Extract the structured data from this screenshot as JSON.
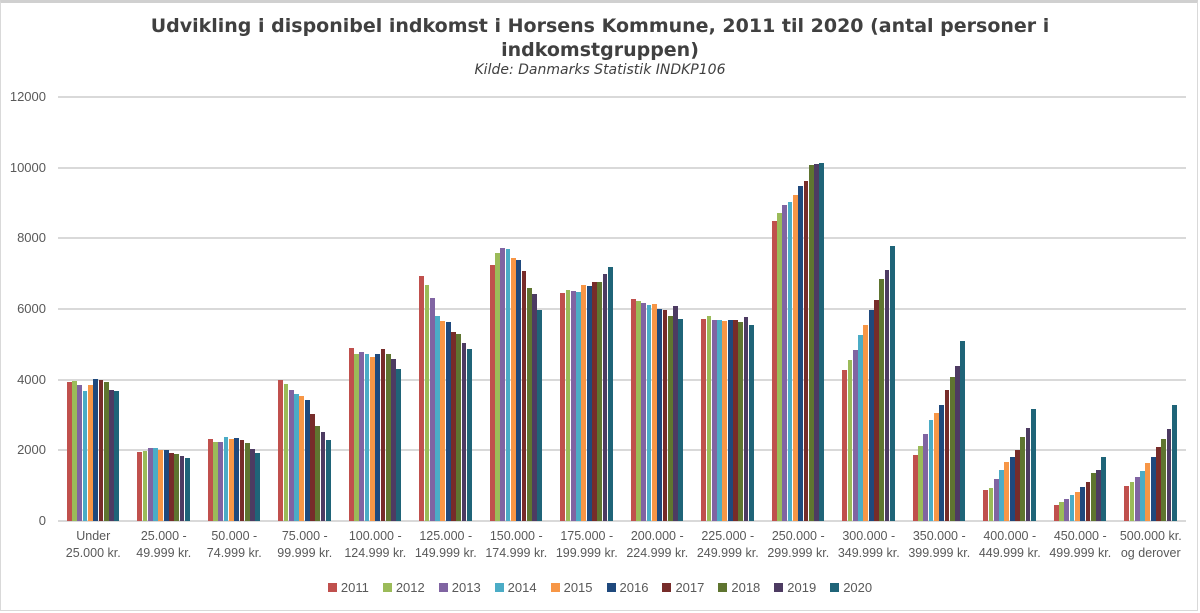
{
  "chart": {
    "title_line1": "Udvikling i disponibel indkomst i Horsens Kommune, 2011 til 2020 (antal personer i",
    "title_line2": "indkomstgruppen)",
    "subtitle": "Kilde: Danmarks Statistik INDKP106"
  },
  "chart_data": {
    "type": "bar",
    "title": "Udvikling i disponibel indkomst i Horsens Kommune, 2011 til 2020 (antal personer i indkomstgruppen)",
    "subtitle": "Kilde: Danmarks Statistik INDKP106",
    "xlabel": "",
    "ylabel": "",
    "ylim": [
      0,
      12000
    ],
    "yticks": [
      0,
      2000,
      4000,
      6000,
      8000,
      10000,
      12000
    ],
    "grid": true,
    "legend_position": "bottom",
    "categories": [
      "Under\n25.000 kr.",
      "25.000 -\n49.999 kr.",
      "50.000 -\n74.999 kr.",
      "75.000 -\n99.999 kr.",
      "100.000 -\n124.999 kr.",
      "125.000 -\n149.999 kr.",
      "150.000 -\n174.999 kr.",
      "175.000 -\n199.999 kr.",
      "200.000 -\n224.999 kr.",
      "225.000 -\n249.999 kr.",
      "250.000 -\n299.999 kr.",
      "300.000 -\n349.999 kr.",
      "350.000 -\n399.999 kr.",
      "400.000 -\n449.999 kr.",
      "450.000 -\n499.999 kr.",
      "500.000 kr.\nog derover"
    ],
    "series": [
      {
        "name": "2011",
        "color": "#c0504d",
        "values": [
          3930,
          1950,
          2320,
          3990,
          4900,
          6920,
          7240,
          6450,
          6280,
          5710,
          8500,
          4260,
          1860,
          890,
          450,
          990
        ]
      },
      {
        "name": "2012",
        "color": "#9bbb59",
        "values": [
          3950,
          1970,
          2250,
          3880,
          4720,
          6680,
          7590,
          6530,
          6240,
          5810,
          8730,
          4560,
          2110,
          930,
          550,
          1110
        ]
      },
      {
        "name": "2013",
        "color": "#8064a2",
        "values": [
          3860,
          2070,
          2230,
          3720,
          4780,
          6320,
          7720,
          6510,
          6170,
          5700,
          8930,
          4850,
          2460,
          1180,
          620,
          1240
        ]
      },
      {
        "name": "2014",
        "color": "#4bacc6",
        "values": [
          3680,
          2070,
          2370,
          3600,
          4720,
          5810,
          7710,
          6470,
          6110,
          5700,
          9020,
          5260,
          2870,
          1450,
          730,
          1410
        ]
      },
      {
        "name": "2015",
        "color": "#f79646",
        "values": [
          3840,
          2000,
          2320,
          3550,
          4650,
          5670,
          7450,
          6670,
          6150,
          5660,
          9230,
          5540,
          3050,
          1680,
          830,
          1650
        ]
      },
      {
        "name": "2016",
        "color": "#1f497d",
        "values": [
          4010,
          2000,
          2350,
          3420,
          4730,
          5620,
          7380,
          6650,
          5990,
          5680,
          9470,
          5970,
          3290,
          1810,
          950,
          1800
        ]
      },
      {
        "name": "2017",
        "color": "#772c2a",
        "values": [
          3980,
          1920,
          2300,
          3030,
          4880,
          5350,
          7070,
          6760,
          5970,
          5690,
          9630,
          6250,
          3700,
          2020,
          1100,
          2100
        ]
      },
      {
        "name": "2018",
        "color": "#5f7530",
        "values": [
          3940,
          1900,
          2200,
          2700,
          4720,
          5280,
          6590,
          6760,
          5790,
          5620,
          10080,
          6860,
          4080,
          2380,
          1350,
          2310
        ]
      },
      {
        "name": "2019",
        "color": "#4d3b62",
        "values": [
          3720,
          1830,
          2050,
          2530,
          4580,
          5050,
          6420,
          6990,
          6090,
          5780,
          10100,
          7090,
          4380,
          2630,
          1440,
          2610
        ]
      },
      {
        "name": "2020",
        "color": "#1f6478",
        "values": [
          3680,
          1780,
          1920,
          2300,
          4290,
          4880,
          5980,
          7200,
          5730,
          5560,
          10130,
          7790,
          5100,
          3160,
          1810,
          3270
        ]
      }
    ]
  }
}
